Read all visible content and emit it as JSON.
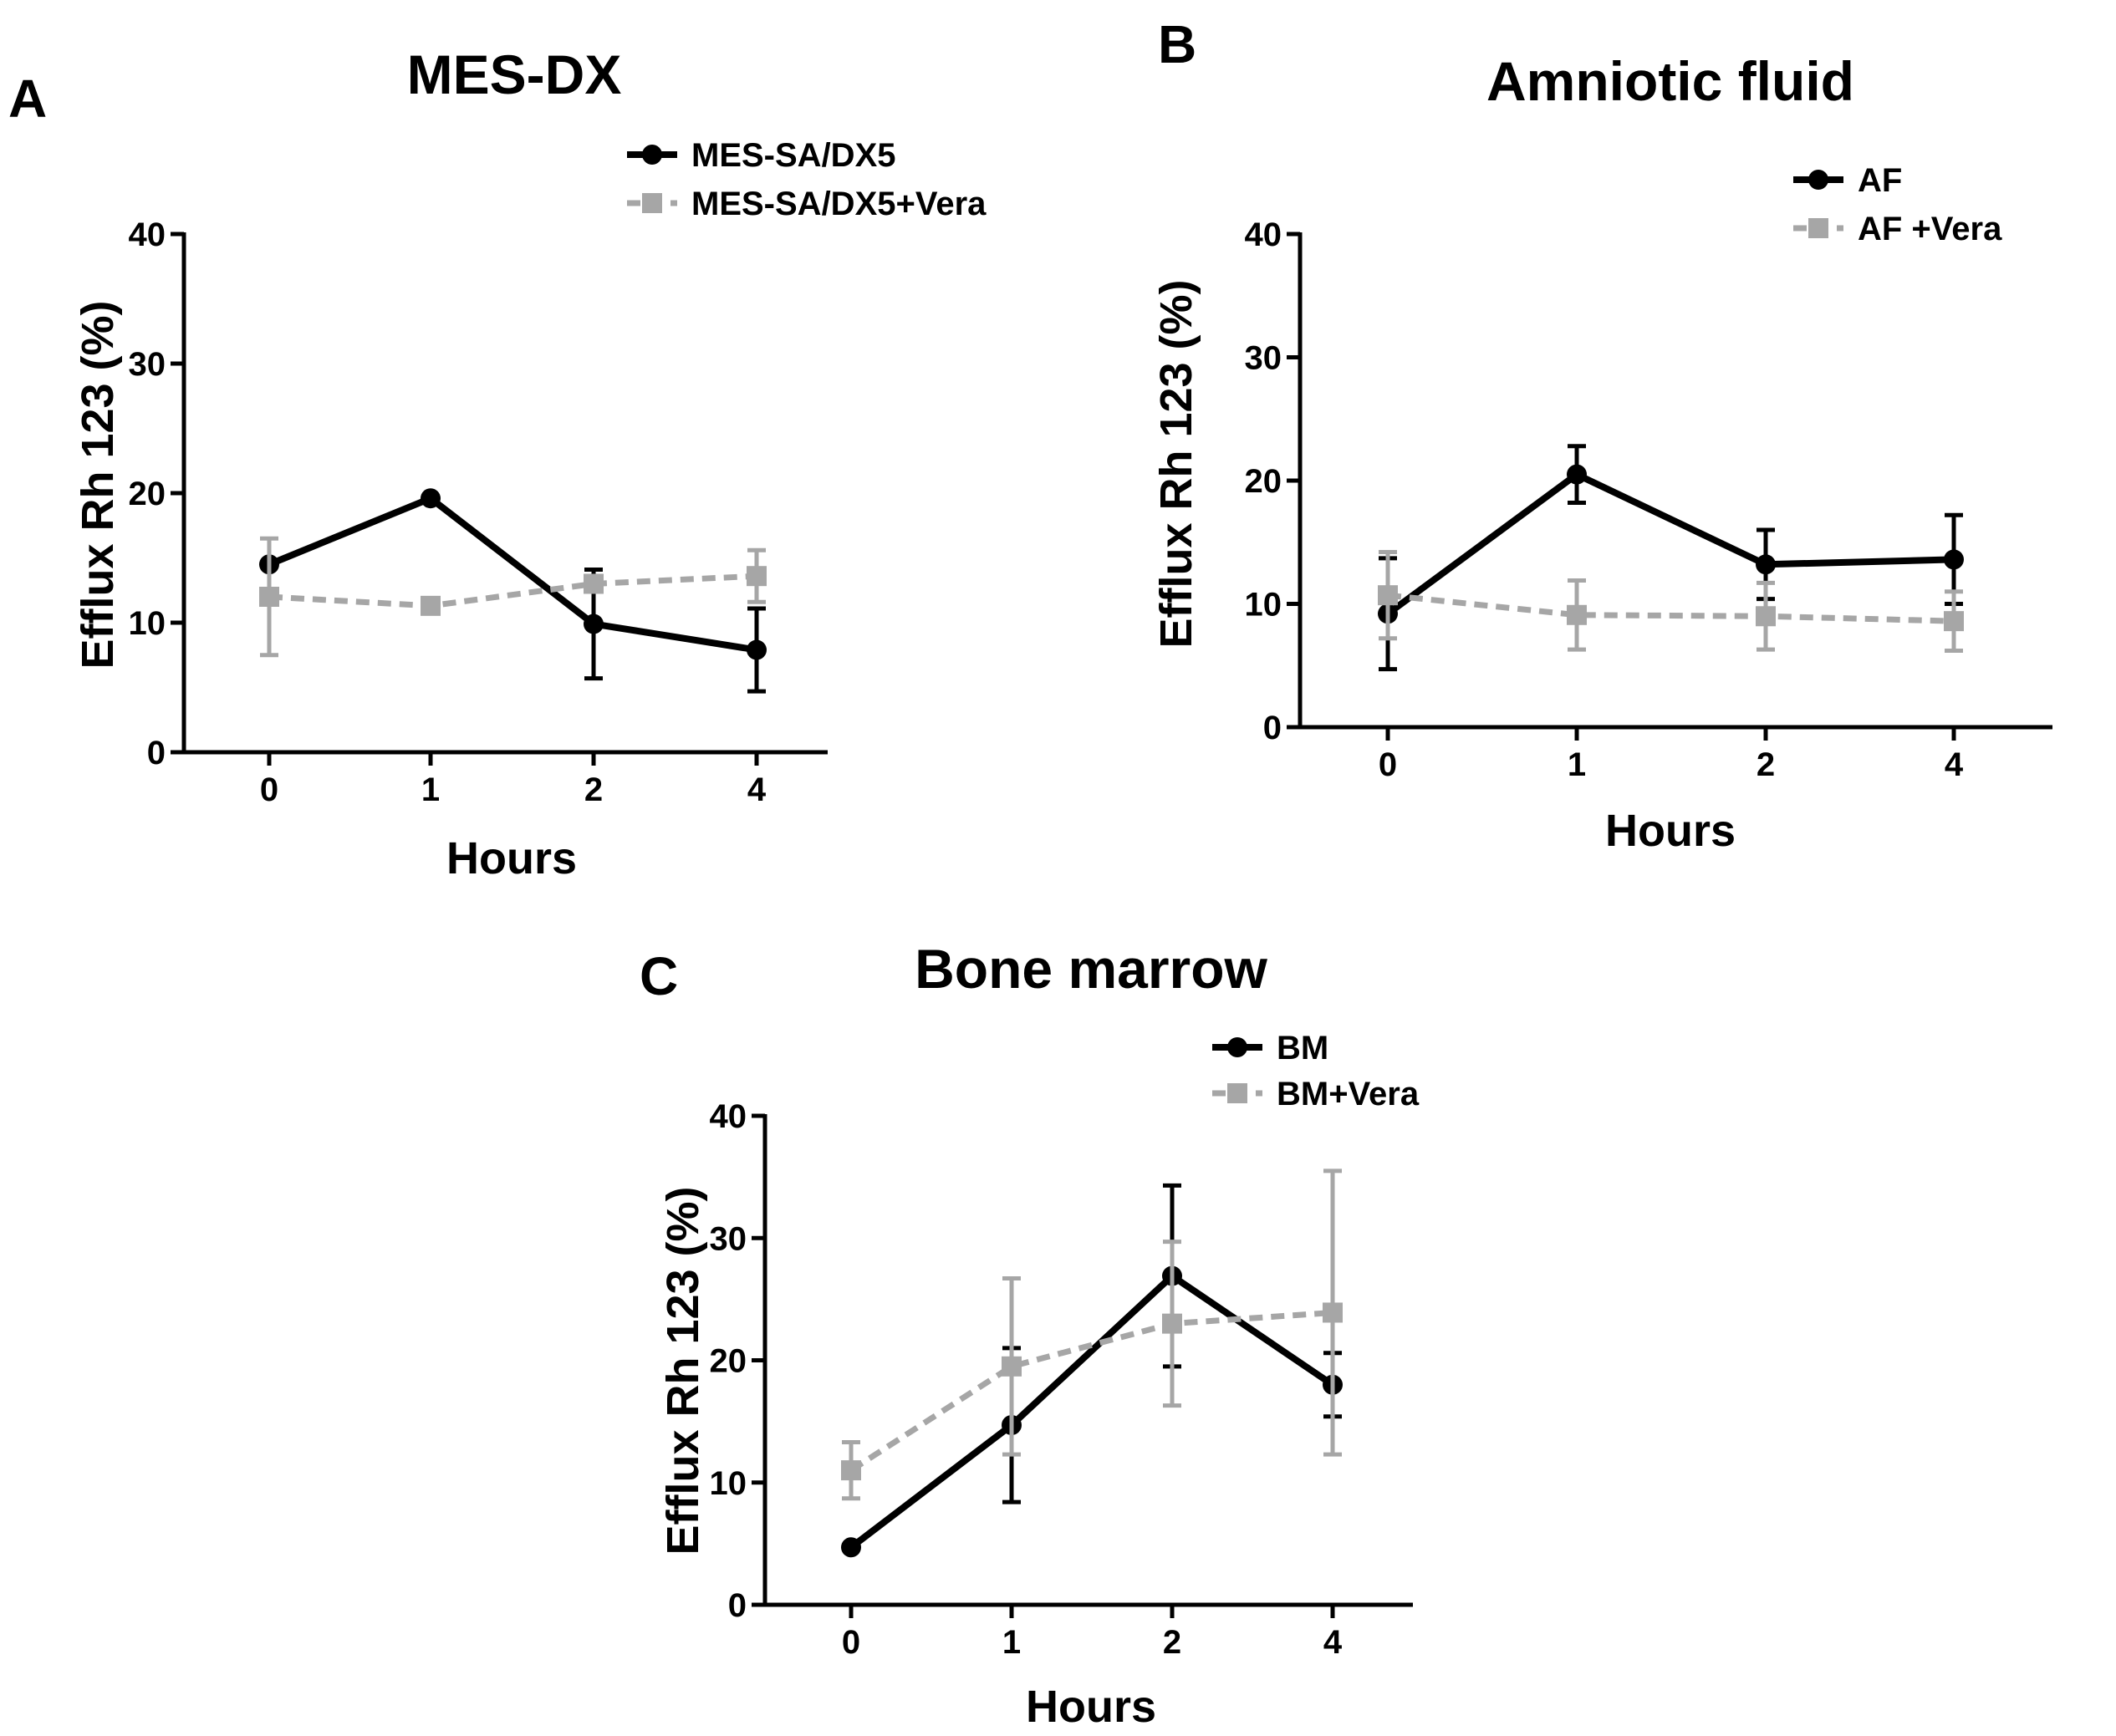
{
  "chart_data": [
    {
      "type": "line",
      "panel_label": "A",
      "title": "MES-DX",
      "xlabel": "Hours",
      "ylabel": "Efflux Rh 123 (%)",
      "categories": [
        "0",
        "1",
        "2",
        "4"
      ],
      "ylim": [
        0,
        40
      ],
      "yticks": [
        "0",
        "10",
        "20",
        "30",
        "40"
      ],
      "legend_position": "top-right",
      "series": [
        {
          "name": "MES-SA/DX5",
          "color": "#000000",
          "marker": "circle",
          "dashed": false,
          "values": [
            14.5,
            19.6,
            9.9,
            7.9
          ],
          "errors": [
            0,
            0,
            4.2,
            3.2
          ]
        },
        {
          "name": "MES-SA/DX5+Vera",
          "color": "#a6a6a6",
          "marker": "square",
          "dashed": true,
          "values": [
            12.0,
            11.3,
            13.0,
            13.6
          ],
          "errors": [
            4.5,
            0,
            0,
            2.0
          ]
        }
      ]
    },
    {
      "type": "line",
      "panel_label": "B",
      "title": "Amniotic fluid",
      "xlabel": "Hours",
      "ylabel": "Efflux Rh 123 (%)",
      "categories": [
        "0",
        "1",
        "2",
        "4"
      ],
      "ylim": [
        0,
        40
      ],
      "yticks": [
        "0",
        "10",
        "20",
        "30",
        "40"
      ],
      "legend_position": "top-right",
      "series": [
        {
          "name": "AF",
          "color": "#000000",
          "marker": "circle",
          "dashed": false,
          "values": [
            9.2,
            20.5,
            13.2,
            13.6
          ],
          "errors": [
            4.5,
            2.3,
            2.8,
            3.6
          ]
        },
        {
          "name": "AF +Vera",
          "color": "#a6a6a6",
          "marker": "square",
          "dashed": true,
          "values": [
            10.7,
            9.1,
            9.0,
            8.6
          ],
          "errors": [
            3.5,
            2.8,
            2.7,
            2.4
          ]
        }
      ]
    },
    {
      "type": "line",
      "panel_label": "C",
      "title": "Bone marrow",
      "xlabel": "Hours",
      "ylabel": "Efflux Rh 123 (%)",
      "categories": [
        "0",
        "1",
        "2",
        "4"
      ],
      "ylim": [
        0,
        40
      ],
      "yticks": [
        "0",
        "10",
        "20",
        "30",
        "40"
      ],
      "legend_position": "top-right",
      "series": [
        {
          "name": "BM",
          "color": "#000000",
          "marker": "circle",
          "dashed": false,
          "values": [
            4.7,
            14.7,
            26.9,
            18.0
          ],
          "errors": [
            0,
            6.3,
            7.4,
            2.6
          ]
        },
        {
          "name": "BM+Vera",
          "color": "#a6a6a6",
          "marker": "square",
          "dashed": true,
          "values": [
            11.0,
            19.5,
            23.0,
            23.9
          ],
          "errors": [
            2.3,
            7.2,
            6.7,
            11.6
          ]
        }
      ]
    }
  ]
}
